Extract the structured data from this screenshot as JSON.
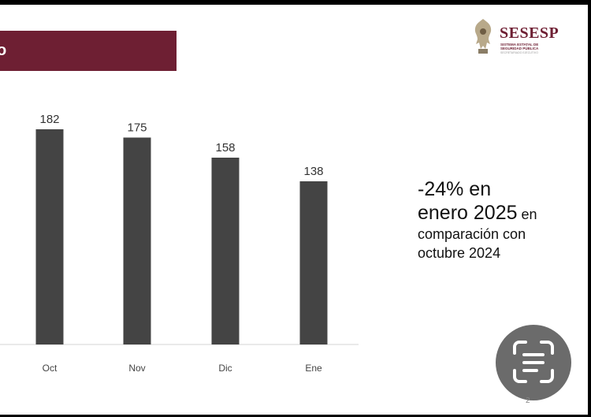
{
  "header": {
    "banner_glyph": "o",
    "logo_name": "SESESP",
    "logo_sub_1": "SISTEMA ESTATAL DE",
    "logo_sub_2": "SEGURIDAD PÚBLICA",
    "logo_sub_3": "SECRETARIADO EJECUTIVO"
  },
  "chart_data": {
    "type": "bar",
    "categories": [
      "Oct",
      "Nov",
      "Dic",
      "Ene"
    ],
    "values": [
      182,
      175,
      158,
      138
    ],
    "title": "",
    "xlabel": "",
    "ylabel": "",
    "ylim": [
      0,
      200
    ],
    "bar_color": "#444444",
    "grid": false,
    "data_labels": true
  },
  "note": {
    "line1": "-24% en",
    "line2_big": "enero 2025",
    "line2_small": " en",
    "line3": "comparación con",
    "line4": "octubre 2024"
  },
  "page_number": "2",
  "icons": {
    "scan": "text-scan-icon"
  },
  "colors": {
    "brand": "#6e1f33",
    "bar": "#444444",
    "scan_button": "#6b6b6b"
  }
}
